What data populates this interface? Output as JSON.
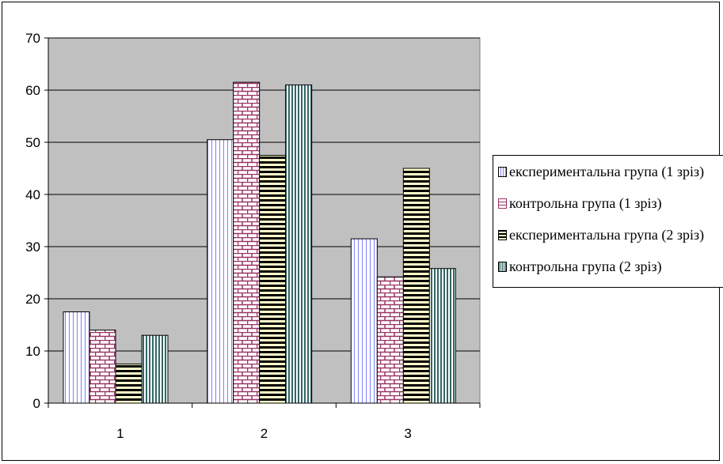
{
  "chart_data": {
    "type": "bar",
    "title": "",
    "xlabel": "",
    "ylabel": "",
    "categories": [
      "1",
      "2",
      "3"
    ],
    "ylim": [
      0,
      70
    ],
    "yticks": [
      "0",
      "10",
      "20",
      "30",
      "40",
      "50",
      "60",
      "70"
    ],
    "grid": true,
    "legend_position": "right",
    "plot_background": "#c0c0c0",
    "series": [
      {
        "name": "експериментальна група (1 зріз)",
        "values": [
          17.5,
          50.5,
          31.5
        ],
        "pattern": "vertical-lines",
        "color": "#8080ff",
        "fill": "#ffffff"
      },
      {
        "name": "контрольна група (1 зріз)",
        "values": [
          14,
          61.5,
          24.2
        ],
        "pattern": "bricks",
        "color": "#993366",
        "fill": "#ffffff"
      },
      {
        "name": "експериментальна група (2 зріз)",
        "values": [
          7.5,
          47.5,
          45
        ],
        "pattern": "horizontal-lines",
        "color": "#000000",
        "fill": "#ffffcc"
      },
      {
        "name": "контрольна група (2 зріз)",
        "values": [
          13,
          61,
          25.8
        ],
        "pattern": "vertical-lines-dense",
        "color": "#336666",
        "fill": "#ffffff"
      }
    ]
  }
}
